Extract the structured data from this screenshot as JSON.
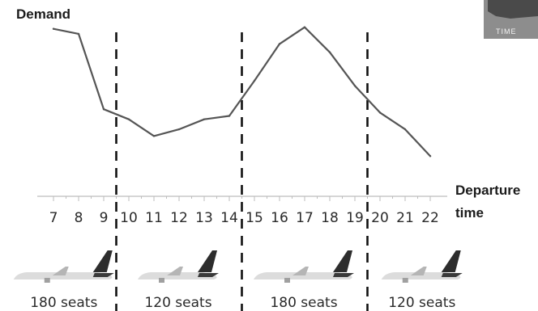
{
  "chart_data": {
    "type": "line",
    "ylabel": "Demand",
    "xlabel": "Departure time",
    "xlabel_lines": [
      "Departure",
      "time"
    ],
    "x": [
      7,
      8,
      9,
      10,
      11,
      12,
      13,
      14,
      15,
      16,
      17,
      18,
      19,
      20,
      21,
      22
    ],
    "values": [
      10.0,
      9.7,
      5.2,
      4.6,
      3.6,
      4.0,
      4.6,
      4.8,
      6.9,
      9.1,
      10.1,
      8.6,
      6.6,
      5.0,
      4.0,
      2.4
    ],
    "ylim": [
      0,
      11
    ],
    "dividers_between": [
      [
        9,
        10
      ],
      [
        14,
        15
      ],
      [
        19,
        20
      ]
    ],
    "segments": [
      {
        "label": "180 seats",
        "plane": "large-plane-icon"
      },
      {
        "label": "120 seats",
        "plane": "small-plane-icon"
      },
      {
        "label": "180 seats",
        "plane": "large-plane-icon"
      },
      {
        "label": "120 seats",
        "plane": "small-plane-icon"
      }
    ],
    "badge": "TIME",
    "grid": false,
    "colors": {
      "line": "#555555",
      "divider": "#111111",
      "axis": "#bdbdbd",
      "badge": "#8a8a8a"
    }
  }
}
